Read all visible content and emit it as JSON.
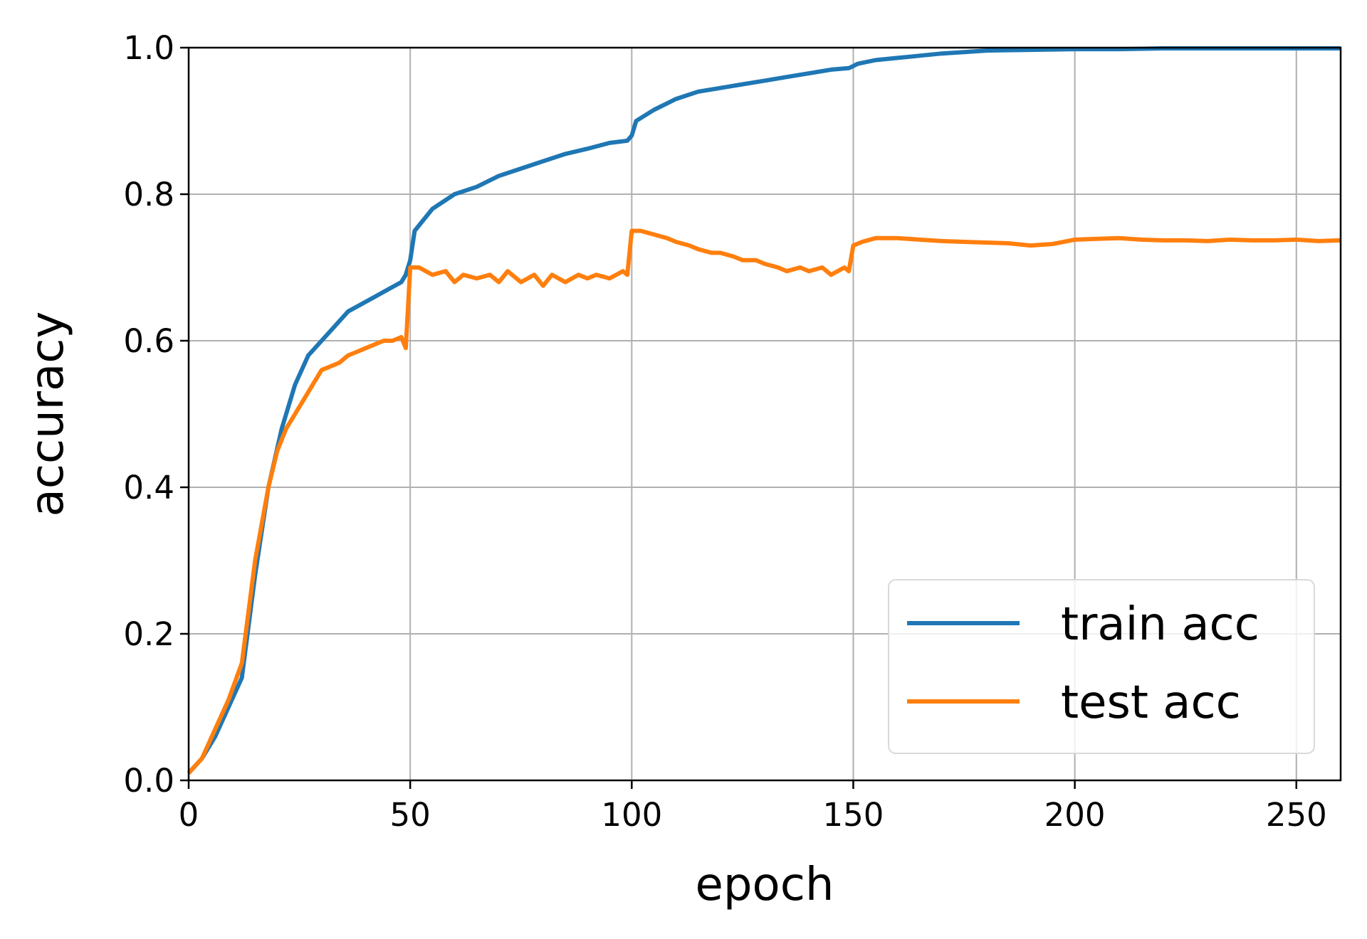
{
  "chart_data": {
    "type": "line",
    "title": "",
    "xlabel": "epoch",
    "ylabel": "accuracy",
    "xlim": [
      0,
      260
    ],
    "ylim": [
      0,
      1.0
    ],
    "xticks": [
      "0",
      "50",
      "100",
      "150",
      "200",
      "250"
    ],
    "yticks": [
      "0.0",
      "0.2",
      "0.4",
      "0.6",
      "0.8",
      "1.0"
    ],
    "grid": true,
    "legend_position": "lower-right",
    "series": [
      {
        "name": "train acc",
        "color": "#1f77b4",
        "x": [
          0,
          3,
          6,
          9,
          12,
          15,
          18,
          21,
          24,
          27,
          30,
          33,
          36,
          39,
          42,
          45,
          48,
          49,
          50,
          51,
          55,
          60,
          65,
          70,
          75,
          80,
          85,
          90,
          95,
          99,
          100,
          101,
          105,
          110,
          115,
          120,
          125,
          130,
          135,
          140,
          145,
          149,
          150,
          151,
          155,
          160,
          165,
          170,
          175,
          180,
          190,
          200,
          210,
          220,
          230,
          240,
          250,
          260
        ],
        "y": [
          0.01,
          0.03,
          0.06,
          0.1,
          0.14,
          0.28,
          0.4,
          0.48,
          0.54,
          0.58,
          0.6,
          0.62,
          0.64,
          0.65,
          0.66,
          0.67,
          0.68,
          0.69,
          0.71,
          0.75,
          0.78,
          0.8,
          0.81,
          0.825,
          0.835,
          0.845,
          0.855,
          0.862,
          0.87,
          0.873,
          0.88,
          0.9,
          0.915,
          0.93,
          0.94,
          0.945,
          0.95,
          0.955,
          0.96,
          0.965,
          0.97,
          0.972,
          0.975,
          0.978,
          0.983,
          0.986,
          0.989,
          0.992,
          0.994,
          0.996,
          0.997,
          0.998,
          0.998,
          0.999,
          0.999,
          0.999,
          0.999,
          0.999
        ]
      },
      {
        "name": "test acc",
        "color": "#ff7f0e",
        "x": [
          0,
          3,
          6,
          9,
          12,
          15,
          18,
          20,
          22,
          24,
          26,
          28,
          30,
          32,
          34,
          36,
          38,
          40,
          42,
          44,
          46,
          48,
          49,
          50,
          52,
          55,
          58,
          60,
          62,
          65,
          68,
          70,
          72,
          75,
          78,
          80,
          82,
          85,
          88,
          90,
          92,
          95,
          98,
          99,
          100,
          102,
          105,
          108,
          110,
          113,
          115,
          118,
          120,
          123,
          125,
          128,
          130,
          133,
          135,
          138,
          140,
          143,
          145,
          148,
          149,
          150,
          152,
          155,
          160,
          165,
          170,
          175,
          180,
          185,
          190,
          195,
          200,
          205,
          210,
          215,
          220,
          225,
          230,
          235,
          240,
          245,
          250,
          255,
          260
        ],
        "y": [
          0.01,
          0.03,
          0.07,
          0.11,
          0.16,
          0.3,
          0.4,
          0.45,
          0.48,
          0.5,
          0.52,
          0.54,
          0.56,
          0.565,
          0.57,
          0.58,
          0.585,
          0.59,
          0.595,
          0.6,
          0.6,
          0.605,
          0.59,
          0.7,
          0.7,
          0.69,
          0.695,
          0.68,
          0.69,
          0.685,
          0.69,
          0.68,
          0.695,
          0.68,
          0.69,
          0.675,
          0.69,
          0.68,
          0.69,
          0.685,
          0.69,
          0.685,
          0.695,
          0.69,
          0.75,
          0.75,
          0.745,
          0.74,
          0.735,
          0.73,
          0.725,
          0.72,
          0.72,
          0.715,
          0.71,
          0.71,
          0.705,
          0.7,
          0.695,
          0.7,
          0.695,
          0.7,
          0.69,
          0.7,
          0.695,
          0.73,
          0.735,
          0.74,
          0.74,
          0.738,
          0.736,
          0.735,
          0.734,
          0.733,
          0.73,
          0.732,
          0.738,
          0.739,
          0.74,
          0.738,
          0.737,
          0.737,
          0.736,
          0.738,
          0.737,
          0.737,
          0.738,
          0.736,
          0.737
        ]
      }
    ]
  }
}
